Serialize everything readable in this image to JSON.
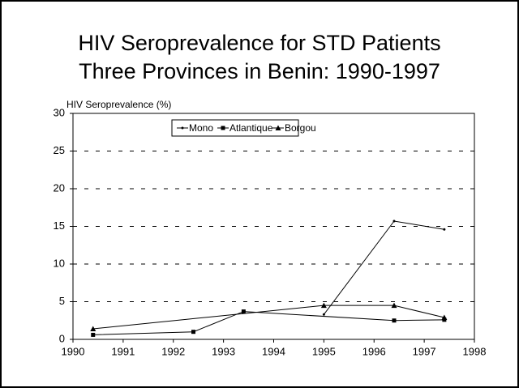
{
  "chart_data": {
    "type": "line",
    "title": [
      "HIV Seroprevalence for STD Patients",
      "Three Provinces in Benin:  1990-1997"
    ],
    "y_label": "HIV Seroprevalence (%)",
    "series": [
      {
        "name": "Mono",
        "marker": "dot",
        "color": "#000000",
        "x": [
          1995.0,
          1996.4,
          1997.4
        ],
        "values": [
          3.3,
          15.7,
          14.6
        ]
      },
      {
        "name": "Atlantique",
        "marker": "square",
        "color": "#000000",
        "x": [
          1990.4,
          1992.4,
          1993.4,
          1996.4,
          1997.4
        ],
        "values": [
          0.6,
          1.0,
          3.7,
          2.5,
          2.6
        ]
      },
      {
        "name": "Borgou",
        "marker": "triangle",
        "color": "#000000",
        "x": [
          1990.4,
          1995.0,
          1996.4,
          1997.4
        ],
        "values": [
          1.4,
          4.5,
          4.5,
          2.9
        ]
      }
    ],
    "xlim": [
      1990,
      1998
    ],
    "xticks": [
      1990,
      1991,
      1992,
      1993,
      1994,
      1995,
      1996,
      1997,
      1998
    ],
    "ylim": [
      0,
      30
    ],
    "yticks": [
      0,
      5,
      10,
      15,
      20,
      25,
      30
    ],
    "grid": true,
    "legend": "top"
  }
}
